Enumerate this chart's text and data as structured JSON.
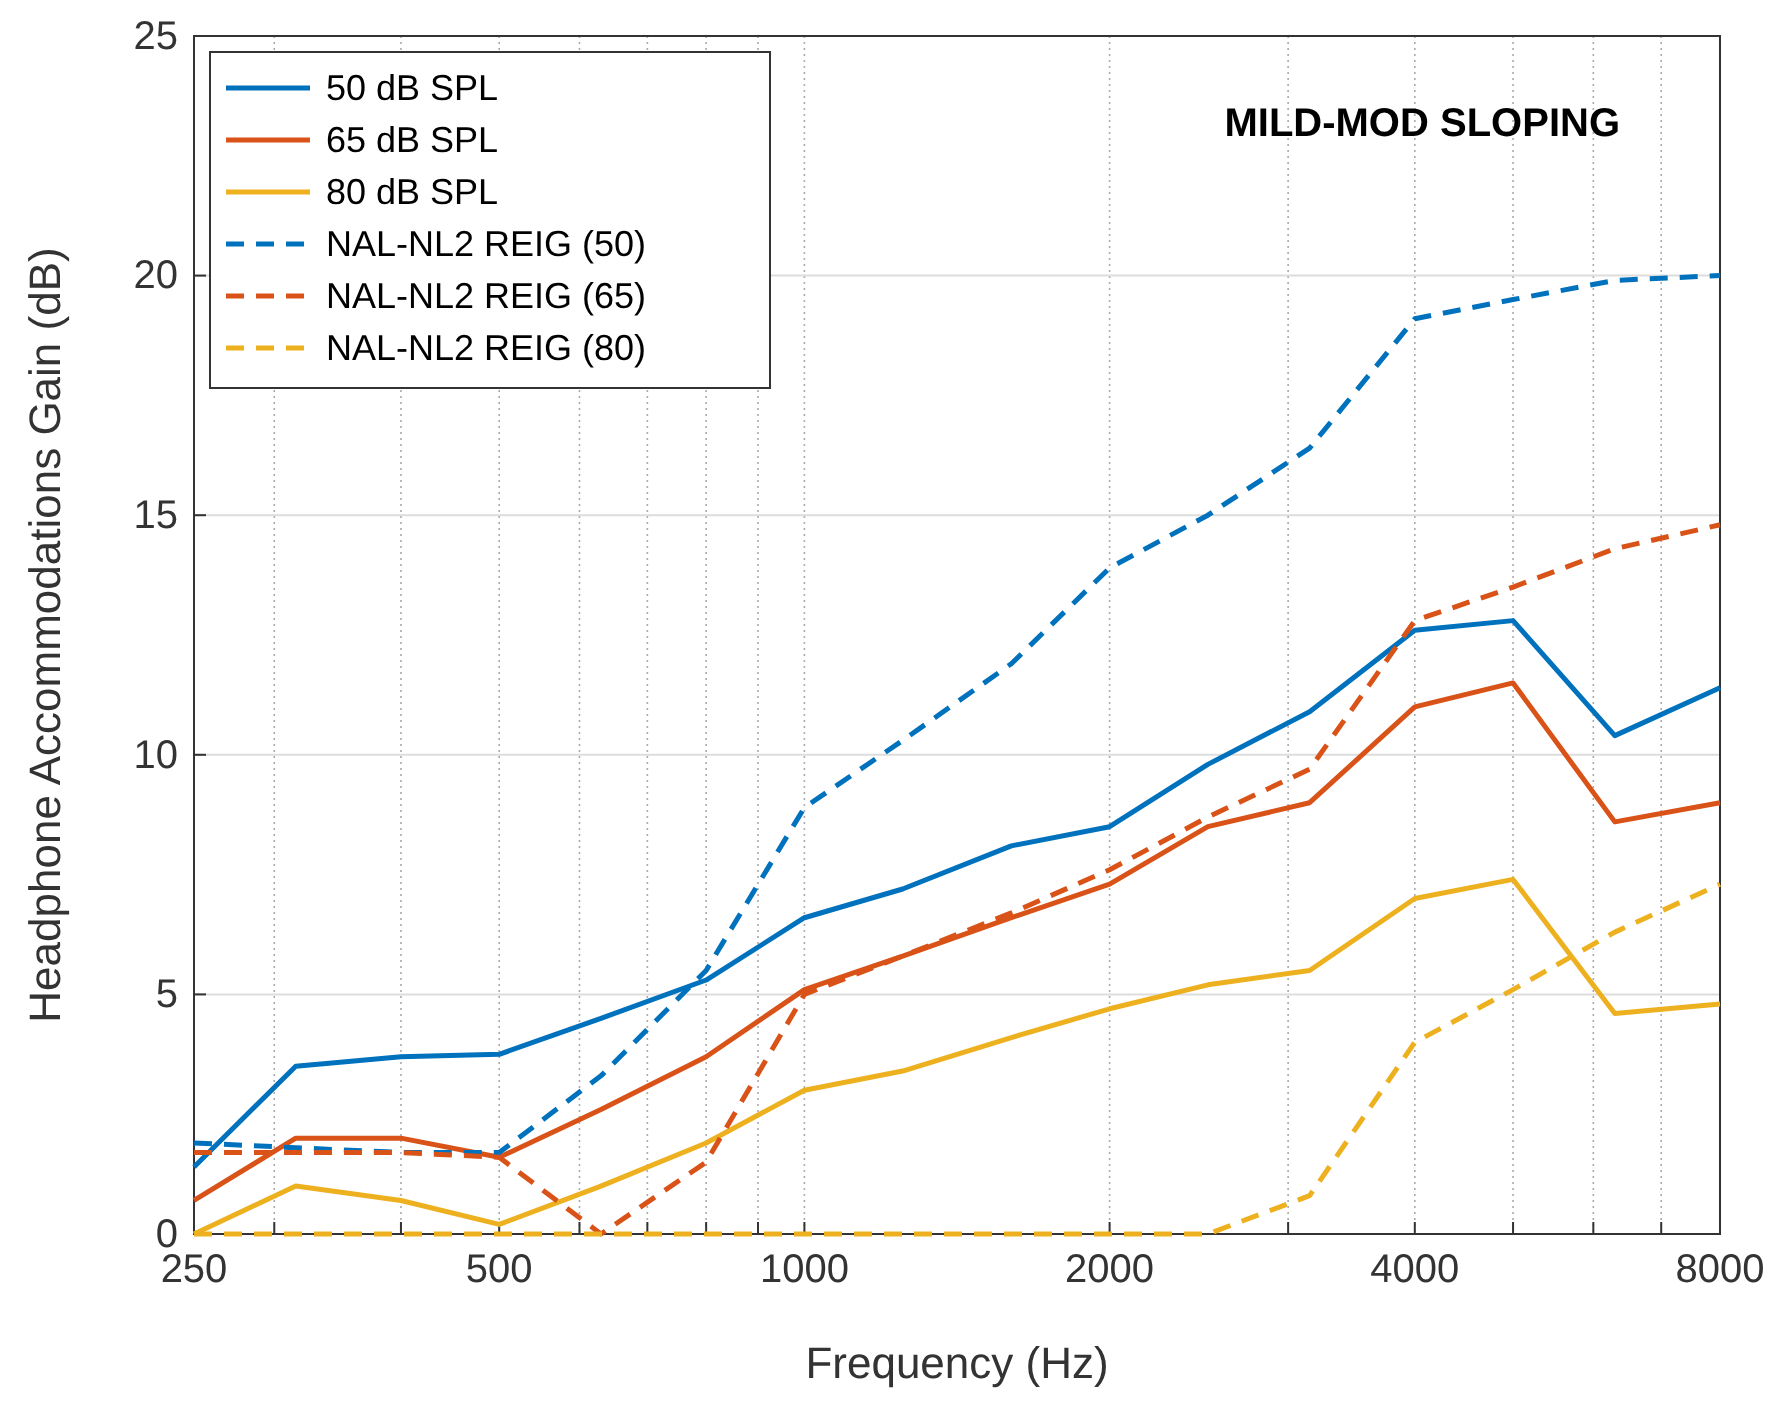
{
  "chart_data": {
    "type": "line",
    "title": "MILD-MOD SLOPING",
    "xlabel": "Frequency (Hz)",
    "ylabel": "Headphone Accommodations Gain (dB)",
    "x": [
      250,
      315,
      400,
      500,
      630,
      800,
      1000,
      1250,
      1600,
      2000,
      2500,
      3150,
      4000,
      5000,
      6300,
      8000
    ],
    "log": "x",
    "xlim": [
      250,
      8000
    ],
    "ylim": [
      0,
      25
    ],
    "xticks": [
      250,
      {
        "value": 300,
        "label": null
      },
      {
        "value": 400,
        "label": null
      },
      500,
      {
        "value": 600,
        "label": null
      },
      {
        "value": 700,
        "label": null
      },
      {
        "value": 800,
        "label": null
      },
      {
        "value": 900,
        "label": null
      },
      1000,
      2000,
      {
        "value": 3000,
        "label": null
      },
      4000,
      {
        "value": 5000,
        "label": null
      },
      {
        "value": 6000,
        "label": null
      },
      {
        "value": 7000,
        "label": null
      },
      8000
    ],
    "yticks": [
      0,
      5,
      10,
      15,
      20,
      25
    ],
    "grid": true,
    "legend": "top left",
    "marker": "none",
    "series": [
      {
        "name": "50 dB SPL",
        "color": "#0072bd",
        "line_style": "solid",
        "values": [
          1.4,
          3.5,
          3.7,
          3.75,
          4.5,
          5.3,
          6.6,
          7.2,
          8.1,
          8.5,
          9.8,
          10.9,
          12.6,
          12.8,
          10.4,
          11.4
        ]
      },
      {
        "name": "65 dB SPL",
        "color": "#d95319",
        "line_style": "solid",
        "values": [
          0.7,
          2.0,
          2.0,
          1.6,
          2.6,
          3.7,
          5.1,
          5.8,
          6.6,
          7.3,
          8.5,
          9.0,
          11.0,
          11.5,
          8.6,
          9.0
        ]
      },
      {
        "name": "80 dB SPL",
        "color": "#edb120",
        "line_style": "solid",
        "values": [
          0,
          1.0,
          0.7,
          0.2,
          1.0,
          1.9,
          3.0,
          3.4,
          4.1,
          4.7,
          5.2,
          5.5,
          7.0,
          7.4,
          4.6,
          4.8
        ]
      },
      {
        "name": "NAL-NL2 REIG (50)",
        "color": "#0072bd",
        "line_style": "dashed",
        "values": [
          1.9,
          1.8,
          1.7,
          1.7,
          3.3,
          5.5,
          8.9,
          10.3,
          11.9,
          13.9,
          15.0,
          16.4,
          19.1,
          19.5,
          19.9,
          20.0
        ]
      },
      {
        "name": "NAL-NL2 REIG (65)",
        "color": "#d95319",
        "line_style": "dashed",
        "values": [
          1.7,
          1.7,
          1.7,
          1.6,
          0,
          1.5,
          5.0,
          5.8,
          6.7,
          7.6,
          8.7,
          9.7,
          12.8,
          13.5,
          14.3,
          14.8
        ]
      },
      {
        "name": "NAL-NL2 REIG (80)",
        "color": "#edb120",
        "line_style": "dashed",
        "values": [
          0,
          0,
          0,
          0,
          0,
          0,
          0,
          0,
          0,
          0,
          0,
          0.8,
          4.0,
          5.1,
          6.3,
          7.3
        ]
      }
    ]
  }
}
